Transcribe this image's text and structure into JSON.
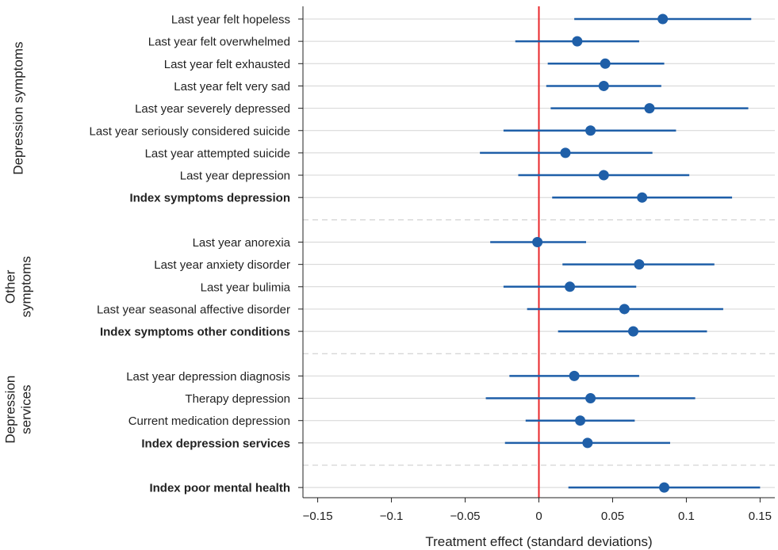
{
  "chart_data": {
    "type": "scatter",
    "subtype": "coefficient-plot-with-confidence-intervals",
    "xlabel": "Treatment effect (standard deviations)",
    "xlim": [
      -0.16,
      0.16
    ],
    "xticks": [
      -0.15,
      -0.1,
      -0.05,
      0,
      0.05,
      0.1,
      0.15
    ],
    "xtick_labels": [
      "−0.15",
      "−0.1",
      "−0.05",
      "0",
      "0.05",
      "0.1",
      "0.15"
    ],
    "reference_line": {
      "x": 0,
      "color": "#e8262a"
    },
    "marker_color": "#1f5fa8",
    "grid": "horizontal",
    "groups": [
      {
        "label_lines": [
          "Depression symptoms"
        ],
        "rows": [
          {
            "label": "Last year felt hopeless",
            "estimate": 0.084,
            "ci_low": 0.024,
            "ci_high": 0.144,
            "bold": false
          },
          {
            "label": "Last year felt overwhelmed",
            "estimate": 0.026,
            "ci_low": -0.016,
            "ci_high": 0.068,
            "bold": false
          },
          {
            "label": "Last year felt exhausted",
            "estimate": 0.045,
            "ci_low": 0.006,
            "ci_high": 0.085,
            "bold": false
          },
          {
            "label": "Last year felt very sad",
            "estimate": 0.044,
            "ci_low": 0.005,
            "ci_high": 0.083,
            "bold": false
          },
          {
            "label": "Last year severely depressed",
            "estimate": 0.075,
            "ci_low": 0.008,
            "ci_high": 0.142,
            "bold": false
          },
          {
            "label": "Last year seriously considered suicide",
            "estimate": 0.035,
            "ci_low": -0.024,
            "ci_high": 0.093,
            "bold": false
          },
          {
            "label": "Last year attempted suicide",
            "estimate": 0.018,
            "ci_low": -0.04,
            "ci_high": 0.077,
            "bold": false
          },
          {
            "label": "Last year depression",
            "estimate": 0.044,
            "ci_low": -0.014,
            "ci_high": 0.102,
            "bold": false
          },
          {
            "label": "Index symptoms depression",
            "estimate": 0.07,
            "ci_low": 0.009,
            "ci_high": 0.131,
            "bold": true
          }
        ]
      },
      {
        "label_lines": [
          "Other",
          "symptoms"
        ],
        "rows": [
          {
            "label": "Last year anorexia",
            "estimate": -0.001,
            "ci_low": -0.033,
            "ci_high": 0.032,
            "bold": false
          },
          {
            "label": "Last year anxiety disorder",
            "estimate": 0.068,
            "ci_low": 0.016,
            "ci_high": 0.119,
            "bold": false
          },
          {
            "label": "Last year bulimia",
            "estimate": 0.021,
            "ci_low": -0.024,
            "ci_high": 0.066,
            "bold": false
          },
          {
            "label": "Last year seasonal affective disorder",
            "estimate": 0.058,
            "ci_low": -0.008,
            "ci_high": 0.125,
            "bold": false
          },
          {
            "label": "Index symptoms other conditions",
            "estimate": 0.064,
            "ci_low": 0.013,
            "ci_high": 0.114,
            "bold": true
          }
        ]
      },
      {
        "label_lines": [
          "Depression",
          "services"
        ],
        "rows": [
          {
            "label": "Last year depression diagnosis",
            "estimate": 0.024,
            "ci_low": -0.02,
            "ci_high": 0.068,
            "bold": false
          },
          {
            "label": "Therapy depression",
            "estimate": 0.035,
            "ci_low": -0.036,
            "ci_high": 0.106,
            "bold": false
          },
          {
            "label": "Current medication depression",
            "estimate": 0.028,
            "ci_low": -0.009,
            "ci_high": 0.065,
            "bold": false
          },
          {
            "label": "Index depression services",
            "estimate": 0.033,
            "ci_low": -0.023,
            "ci_high": 0.089,
            "bold": true
          }
        ]
      },
      {
        "label_lines": [],
        "rows": [
          {
            "label": "Index poor mental health",
            "estimate": 0.085,
            "ci_low": 0.02,
            "ci_high": 0.15,
            "bold": true
          }
        ]
      }
    ]
  }
}
